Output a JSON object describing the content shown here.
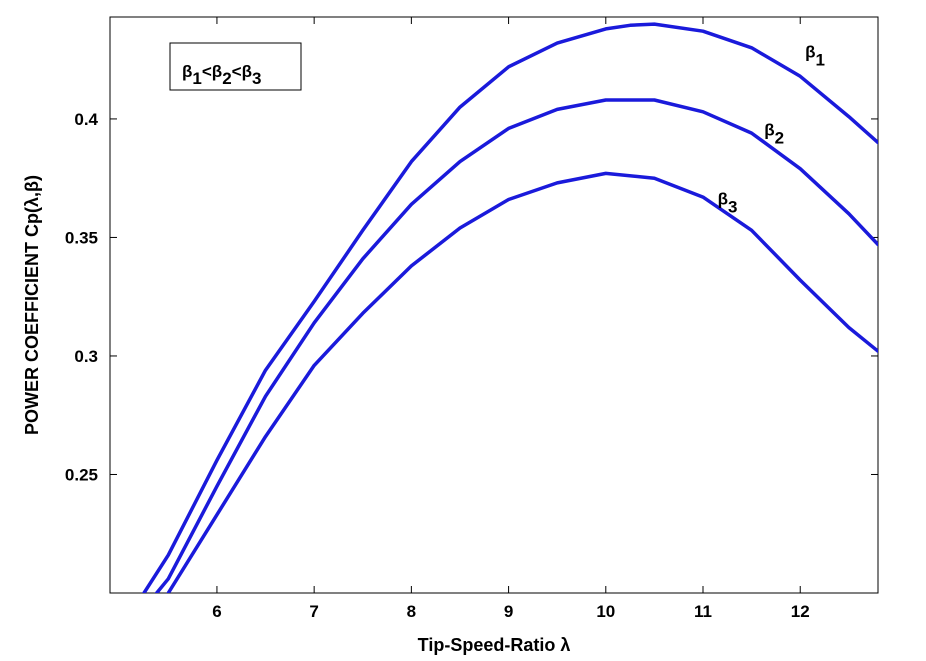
{
  "chart_data": {
    "type": "line",
    "title": "",
    "xlabel": "Tip-Speed-Ratio λ",
    "ylabel": "POWER COEFFICIENT Cp(λ,β)",
    "xlim": [
      4.9,
      12.8
    ],
    "ylim": [
      0.2,
      0.443
    ],
    "xticks": [
      6,
      7,
      8,
      9,
      10,
      11,
      12
    ],
    "yticks": [
      0.25,
      0.3,
      0.35,
      0.4
    ],
    "xtick_labels": [
      "6",
      "7",
      "8",
      "9",
      "10",
      "11",
      "12"
    ],
    "ytick_labels": [
      "0.25",
      "0.3",
      "0.35",
      "0.4"
    ],
    "grid": false,
    "legend": {
      "text": "β1<β2<β3",
      "position": "top-left"
    },
    "line_color": "#1a1adb",
    "series": [
      {
        "name": "β1",
        "label_base": "β",
        "label_sub": "1",
        "label_at": [
          12.05,
          0.426
        ],
        "x": [
          5.25,
          5.5,
          6.0,
          6.5,
          7.0,
          7.5,
          8.0,
          8.5,
          9.0,
          9.5,
          10.0,
          10.25,
          10.5,
          11.0,
          11.5,
          12.0,
          12.5,
          12.8
        ],
        "y": [
          0.2,
          0.216,
          0.256,
          0.294,
          0.323,
          0.353,
          0.382,
          0.405,
          0.422,
          0.432,
          0.438,
          0.4395,
          0.44,
          0.437,
          0.43,
          0.418,
          0.401,
          0.39
        ]
      },
      {
        "name": "β2",
        "label_base": "β",
        "label_sub": "2",
        "label_at": [
          11.63,
          0.393
        ],
        "x": [
          5.38,
          5.5,
          6.0,
          6.5,
          7.0,
          7.5,
          8.0,
          8.5,
          9.0,
          9.5,
          10.0,
          10.5,
          11.0,
          11.5,
          12.0,
          12.5,
          12.8
        ],
        "y": [
          0.2,
          0.206,
          0.245,
          0.283,
          0.314,
          0.341,
          0.364,
          0.382,
          0.396,
          0.404,
          0.408,
          0.408,
          0.403,
          0.394,
          0.379,
          0.36,
          0.347
        ]
      },
      {
        "name": "β3",
        "label_base": "β",
        "label_sub": "3",
        "label_at": [
          11.15,
          0.364
        ],
        "x": [
          5.5,
          6.0,
          6.5,
          7.0,
          7.5,
          8.0,
          8.5,
          9.0,
          9.5,
          10.0,
          10.5,
          11.0,
          11.5,
          12.0,
          12.5,
          12.8
        ],
        "y": [
          0.2,
          0.233,
          0.266,
          0.296,
          0.318,
          0.338,
          0.354,
          0.366,
          0.373,
          0.377,
          0.375,
          0.367,
          0.353,
          0.332,
          0.312,
          0.302
        ]
      }
    ]
  }
}
